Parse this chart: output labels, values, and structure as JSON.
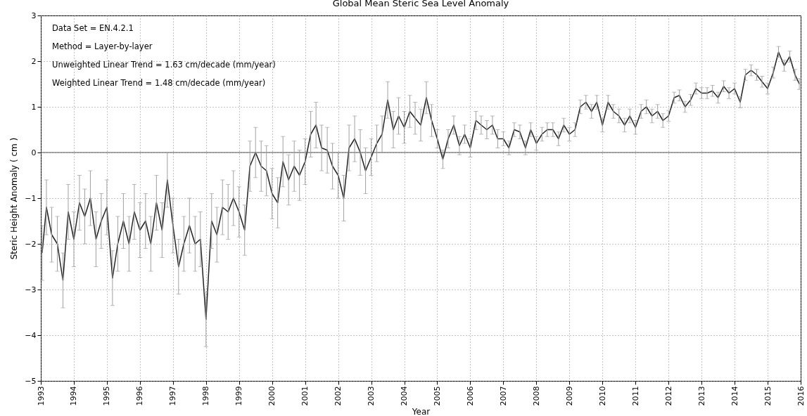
{
  "chart_data": {
    "type": "line",
    "title": "Global Mean Steric Sea Level Anomaly",
    "xlabel": "Year",
    "ylabel": "Steric Height Anomaly  ( cm )",
    "annotations": [
      "Data Set = EN.4.2.1",
      "Method = Layer-by-layer",
      "Unweighted Linear Trend = 1.63 cm/decade (mm/year)",
      "Weighted Linear Trend = 1.48 cm/decade (mm/year)"
    ],
    "x": [
      1993.04,
      1993.17,
      1993.33,
      1993.5,
      1993.67,
      1993.83,
      1994,
      1994.17,
      1994.33,
      1994.5,
      1994.67,
      1994.83,
      1995,
      1995.17,
      1995.33,
      1995.5,
      1995.67,
      1995.83,
      1996,
      1996.17,
      1996.33,
      1996.5,
      1996.67,
      1996.83,
      1997,
      1997.17,
      1997.33,
      1997.5,
      1997.67,
      1997.83,
      1998,
      1998.17,
      1998.33,
      1998.5,
      1998.67,
      1998.83,
      1999,
      1999.17,
      1999.33,
      1999.5,
      1999.67,
      1999.83,
      2000,
      2000.17,
      2000.33,
      2000.5,
      2000.67,
      2000.83,
      2001,
      2001.17,
      2001.33,
      2001.5,
      2001.67,
      2001.83,
      2002,
      2002.17,
      2002.33,
      2002.5,
      2002.67,
      2002.83,
      2003,
      2003.17,
      2003.33,
      2003.5,
      2003.67,
      2003.83,
      2004,
      2004.17,
      2004.33,
      2004.5,
      2004.67,
      2004.83,
      2005,
      2005.17,
      2005.33,
      2005.5,
      2005.67,
      2005.83,
      2006,
      2006.17,
      2006.33,
      2006.5,
      2006.67,
      2006.83,
      2007,
      2007.17,
      2007.33,
      2007.5,
      2007.67,
      2007.83,
      2008,
      2008.17,
      2008.33,
      2008.5,
      2008.67,
      2008.83,
      2009,
      2009.17,
      2009.33,
      2009.5,
      2009.67,
      2009.83,
      2010,
      2010.17,
      2010.33,
      2010.5,
      2010.67,
      2010.83,
      2011,
      2011.17,
      2011.33,
      2011.5,
      2011.67,
      2011.83,
      2012,
      2012.17,
      2012.33,
      2012.5,
      2012.67,
      2012.83,
      2013,
      2013.17,
      2013.33,
      2013.5,
      2013.67,
      2013.83,
      2014,
      2014.17,
      2014.33,
      2014.5,
      2014.67,
      2014.83,
      2015,
      2015.17,
      2015.33,
      2015.5,
      2015.67,
      2015.83,
      2015.96
    ],
    "series": [
      {
        "color": "#222222",
        "values": [
          -2.2,
          -1.2,
          -1.8,
          -2.0,
          -2.8,
          -1.3,
          -1.9,
          -1.1,
          -1.4,
          -1.0,
          -1.9,
          -1.5,
          -1.2,
          -2.75,
          -2.0,
          -1.5,
          -2.0,
          -1.3,
          -1.7,
          -1.5,
          -2.0,
          -1.1,
          -1.7,
          -0.6,
          -1.6,
          -2.5,
          -2.0,
          -1.6,
          -2.0,
          -1.9,
          -3.65,
          -1.5,
          -1.8,
          -1.2,
          -1.3,
          -1.0,
          -1.3,
          -1.7,
          -0.3,
          0.0,
          -0.3,
          -0.4,
          -0.9,
          -1.1,
          -0.2,
          -0.6,
          -0.3,
          -0.5,
          -0.2,
          0.4,
          0.6,
          0.1,
          0.05,
          -0.3,
          -0.5,
          -1.0,
          0.1,
          0.3,
          0.0,
          -0.4,
          -0.1,
          0.2,
          0.4,
          1.15,
          0.5,
          0.8,
          0.55,
          0.9,
          0.75,
          0.6,
          1.2,
          0.7,
          0.3,
          -0.15,
          0.3,
          0.6,
          0.15,
          0.4,
          0.1,
          0.7,
          0.6,
          0.5,
          0.6,
          0.3,
          0.3,
          0.1,
          0.5,
          0.45,
          0.1,
          0.5,
          0.2,
          0.4,
          0.5,
          0.5,
          0.3,
          0.6,
          0.4,
          0.5,
          1.0,
          1.1,
          0.9,
          1.1,
          0.6,
          1.1,
          0.9,
          0.8,
          0.6,
          0.8,
          0.55,
          0.9,
          1.0,
          0.8,
          0.9,
          0.7,
          0.8,
          1.2,
          1.25,
          1.0,
          1.15,
          1.4,
          1.3,
          1.3,
          1.35,
          1.2,
          1.45,
          1.3,
          1.4,
          1.1,
          1.7,
          1.8,
          1.7,
          1.55,
          1.4,
          1.75,
          2.2,
          1.9,
          2.1,
          1.7,
          1.5
        ],
        "errors": [
          0.6,
          0.6,
          0.6,
          0.6,
          0.6,
          0.6,
          0.6,
          0.6,
          0.6,
          0.6,
          0.6,
          0.6,
          0.6,
          0.6,
          0.6,
          0.6,
          0.6,
          0.6,
          0.6,
          0.6,
          0.6,
          0.6,
          0.6,
          0.6,
          0.6,
          0.6,
          0.6,
          0.6,
          0.6,
          0.6,
          0.6,
          0.6,
          0.6,
          0.6,
          0.6,
          0.6,
          0.55,
          0.55,
          0.55,
          0.55,
          0.55,
          0.55,
          0.55,
          0.55,
          0.55,
          0.55,
          0.55,
          0.55,
          0.5,
          0.5,
          0.5,
          0.5,
          0.5,
          0.5,
          0.5,
          0.5,
          0.5,
          0.5,
          0.5,
          0.5,
          0.4,
          0.4,
          0.4,
          0.4,
          0.4,
          0.4,
          0.35,
          0.35,
          0.35,
          0.35,
          0.35,
          0.35,
          0.2,
          0.2,
          0.2,
          0.2,
          0.2,
          0.2,
          0.2,
          0.2,
          0.2,
          0.2,
          0.2,
          0.2,
          0.15,
          0.15,
          0.15,
          0.15,
          0.15,
          0.15,
          0.15,
          0.15,
          0.15,
          0.15,
          0.15,
          0.15,
          0.15,
          0.15,
          0.15,
          0.15,
          0.15,
          0.15,
          0.15,
          0.15,
          0.15,
          0.15,
          0.15,
          0.15,
          0.15,
          0.15,
          0.15,
          0.15,
          0.15,
          0.15,
          0.12,
          0.12,
          0.12,
          0.12,
          0.12,
          0.12,
          0.12,
          0.12,
          0.12,
          0.12,
          0.12,
          0.12,
          0.12,
          0.12,
          0.12,
          0.12,
          0.12,
          0.12,
          0.12,
          0.12,
          0.12,
          0.12,
          0.12,
          0.12,
          0.12
        ]
      }
    ],
    "xlim": [
      1993,
      2016
    ],
    "xticks": [
      1993,
      1994,
      1995,
      1996,
      1997,
      1998,
      1999,
      2000,
      2001,
      2002,
      2003,
      2004,
      2005,
      2006,
      2007,
      2008,
      2009,
      2010,
      2011,
      2012,
      2013,
      2014,
      2015,
      2016
    ],
    "ylim": [
      -5,
      3
    ],
    "yticks": [
      -5,
      -4,
      -3,
      -2,
      -1,
      0,
      1,
      2,
      3
    ],
    "ref_lines": [
      {
        "axis": "y",
        "value": 0,
        "color": "#555555"
      }
    ],
    "grid": true,
    "marker": "none",
    "line_style": "solid"
  }
}
